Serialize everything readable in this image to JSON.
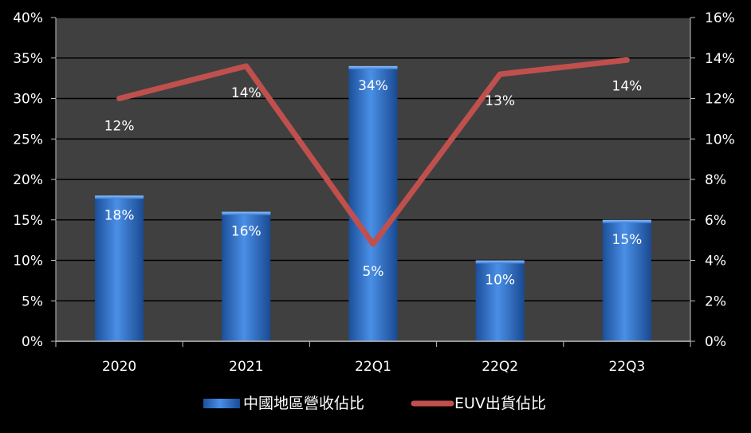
{
  "chart_data": {
    "type": "bar",
    "categories": [
      "2020",
      "2021",
      "22Q1",
      "22Q2",
      "22Q3"
    ],
    "series": [
      {
        "name": "中國地區營收佔比",
        "type": "bar",
        "axis": "left",
        "values": [
          18,
          16,
          34,
          10,
          15
        ],
        "labels": [
          "18%",
          "16%",
          "34%",
          "10%",
          "15%"
        ],
        "color": "#3c7fd6"
      },
      {
        "name": "EUV出貨佔比",
        "type": "line",
        "axis": "right",
        "values": [
          12,
          13.6,
          4.8,
          13.2,
          13.9
        ],
        "labels": [
          "12%",
          "14%",
          "5%",
          "13%",
          "14%"
        ],
        "color": "#c0504d"
      }
    ],
    "y_left": {
      "min": 0,
      "max": 40,
      "step": 5,
      "ticks": [
        "0%",
        "5%",
        "10%",
        "15%",
        "20%",
        "25%",
        "30%",
        "35%",
        "40%"
      ]
    },
    "y_right": {
      "min": 0,
      "max": 16,
      "step": 2,
      "ticks": [
        "0%",
        "2%",
        "4%",
        "6%",
        "8%",
        "10%",
        "12%",
        "14%",
        "16%"
      ]
    },
    "grid": true,
    "legend_position": "bottom",
    "title": "",
    "xlabel": "",
    "ylabel": "",
    "plot_background": "#404040",
    "grid_color": "#000000"
  }
}
